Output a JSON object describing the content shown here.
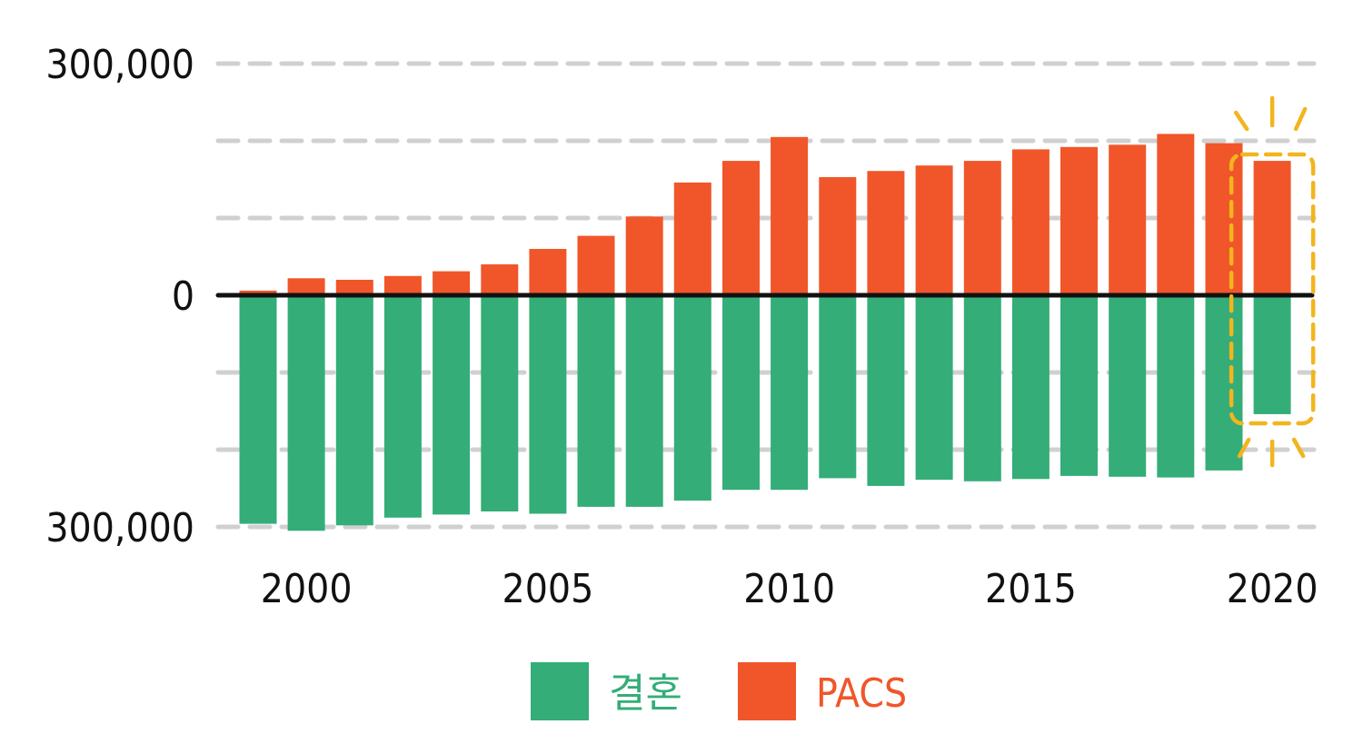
{
  "chart_data": {
    "type": "bar",
    "layout": "diverging-stacked",
    "x": [
      1999,
      2000,
      2001,
      2002,
      2003,
      2004,
      2005,
      2006,
      2007,
      2008,
      2009,
      2010,
      2011,
      2012,
      2013,
      2014,
      2015,
      2016,
      2017,
      2018,
      2019,
      2020
    ],
    "series": [
      {
        "name": "결혼",
        "color": "#34ad78",
        "direction": "down",
        "values": [
          296000,
          305000,
          298000,
          288000,
          284000,
          280000,
          283000,
          274000,
          274000,
          266000,
          252000,
          252000,
          237000,
          247000,
          239000,
          241000,
          238000,
          234000,
          235000,
          236000,
          227000,
          154000
        ]
      },
      {
        "name": "PACS",
        "color": "#f0562a",
        "direction": "up",
        "values": [
          6000,
          22000,
          20000,
          25000,
          31000,
          40000,
          60000,
          77000,
          102000,
          146000,
          174000,
          205000,
          153000,
          161000,
          168000,
          174000,
          189000,
          192000,
          195000,
          209000,
          197000,
          174000
        ]
      }
    ],
    "y_tick_labels": [
      "300,000",
      "0",
      "300,000"
    ],
    "y_ticks": [
      300000,
      0,
      -300000
    ],
    "x_tick_labels": [
      "2000",
      "2005",
      "2010",
      "2015",
      "2020"
    ],
    "x_ticks": [
      2000,
      2005,
      2010,
      2015,
      2020
    ],
    "ylim": [
      -300000,
      300000
    ],
    "grid": "dashed horizontal every 100,000",
    "legend": {
      "placement": "bottom-center",
      "entries": [
        "결혼",
        "PACS"
      ]
    },
    "highlight": {
      "year": 2020,
      "style": "dashed yellow box with burst marks",
      "color": "#f2b51d"
    },
    "title": "",
    "xlabel": "",
    "ylabel": ""
  }
}
